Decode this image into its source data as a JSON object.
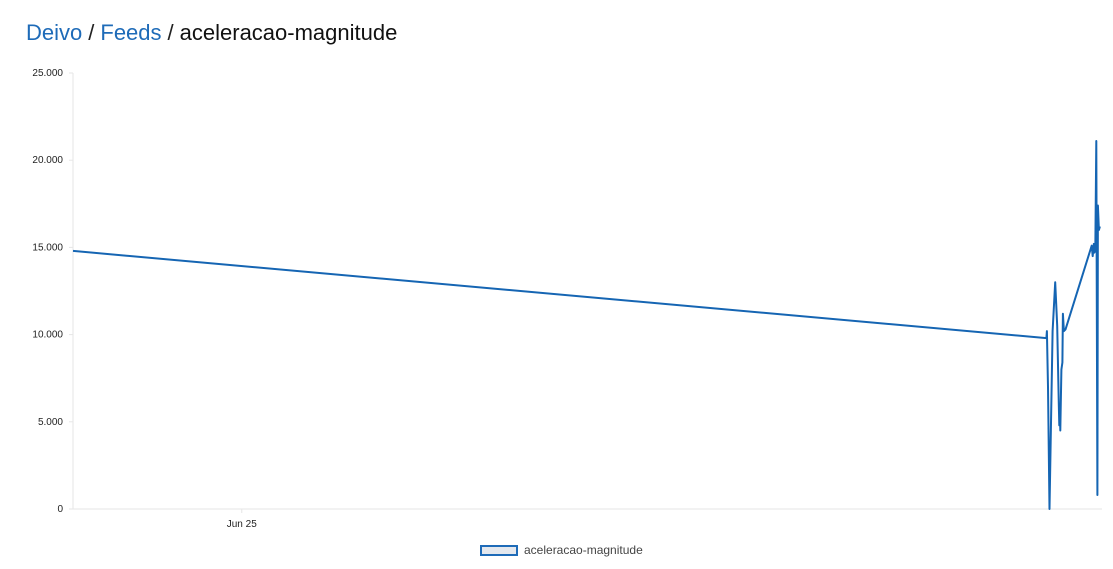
{
  "breadcrumb": {
    "owner": "Deivo",
    "separator": "/",
    "feeds": "Feeds",
    "current": "aceleracao-magnitude"
  },
  "colors": {
    "line": "#1565b3",
    "link": "#1e6bb8",
    "axis": "#e6e6e6"
  },
  "chart_data": {
    "type": "line",
    "title": "",
    "xlabel": "",
    "ylabel": "",
    "ylim": [
      0,
      25
    ],
    "yticks": [
      {
        "value": 0,
        "label": "0"
      },
      {
        "value": 5,
        "label": "5.000"
      },
      {
        "value": 10,
        "label": "10.000"
      },
      {
        "value": 15,
        "label": "15.000"
      },
      {
        "value": 20,
        "label": "20.000"
      },
      {
        "value": 25,
        "label": "25.000"
      }
    ],
    "xlim": [
      0,
      100
    ],
    "xticks": [
      {
        "value": 16.4,
        "label": "Jun 25"
      }
    ],
    "legend_position": "bottom-center",
    "grid": false,
    "series": [
      {
        "name": "aceleracao-magnitude",
        "points": [
          [
            0,
            14.8
          ],
          [
            94.6,
            9.8
          ],
          [
            94.65,
            10.2
          ],
          [
            94.75,
            7.0
          ],
          [
            94.9,
            0.0
          ],
          [
            95.2,
            10.2
          ],
          [
            95.45,
            13.0
          ],
          [
            95.65,
            10.5
          ],
          [
            95.8,
            6.0
          ],
          [
            95.85,
            4.8
          ],
          [
            95.9,
            5.8
          ],
          [
            95.95,
            4.5
          ],
          [
            96.05,
            8.0
          ],
          [
            96.15,
            8.4
          ],
          [
            96.2,
            11.2
          ],
          [
            96.3,
            10.2
          ],
          [
            96.45,
            10.3
          ],
          [
            99.0,
            15.1
          ],
          [
            99.1,
            14.5
          ],
          [
            99.2,
            15.2
          ],
          [
            99.25,
            14.7
          ],
          [
            99.35,
            14.8
          ],
          [
            99.45,
            21.1
          ],
          [
            99.55,
            0.8
          ],
          [
            99.6,
            17.4
          ],
          [
            99.7,
            16.0
          ],
          [
            99.8,
            16.2
          ]
        ]
      }
    ]
  }
}
